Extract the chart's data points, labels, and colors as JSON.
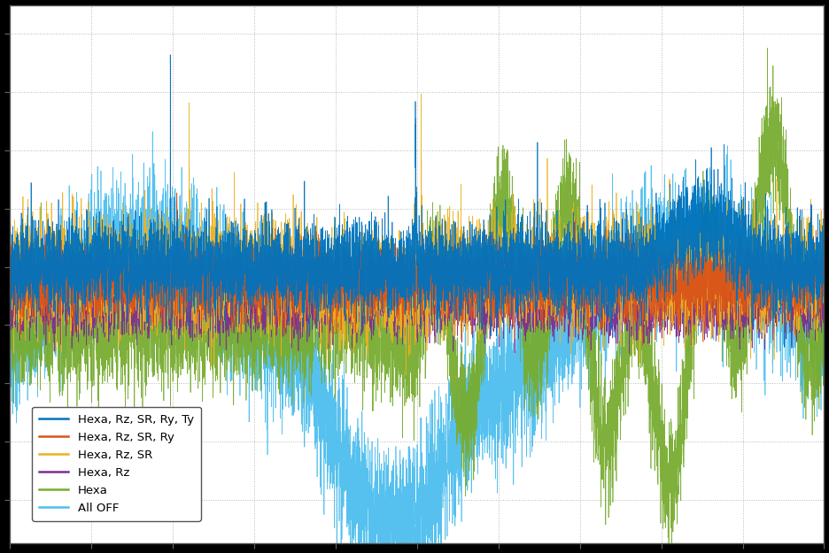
{
  "title": "",
  "xlabel": "",
  "ylabel": "",
  "background_color": "#000000",
  "plot_bg_color": "#ffffff",
  "grid_color": "#b0b0b0",
  "series": [
    {
      "label": "Hexa, Rz, SR, Ry, Ty",
      "color": "#0072bd"
    },
    {
      "label": "Hexa, Rz, SR, Ry",
      "color": "#d95319"
    },
    {
      "label": "Hexa, Rz, SR",
      "color": "#edb120"
    },
    {
      "label": "Hexa, Rz",
      "color": "#7e2f8e"
    },
    {
      "label": "Hexa",
      "color": "#77ac30"
    },
    {
      "label": "All OFF",
      "color": "#4dbeee"
    }
  ],
  "figsize": [
    9.36,
    6.25
  ],
  "dpi": 100,
  "n_points": 8000,
  "seed": 42
}
